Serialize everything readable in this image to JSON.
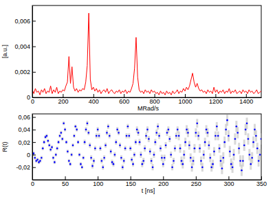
{
  "chart_data": [
    {
      "type": "line",
      "y_label": "[a.u.]",
      "x_label": "MRad/s",
      "x": [
        0,
        10,
        20,
        30,
        40,
        50,
        60,
        70,
        80,
        90,
        100,
        110,
        120,
        130,
        140,
        150,
        160,
        170,
        180,
        190,
        200,
        210,
        220,
        230,
        240,
        250,
        260,
        270,
        280,
        290,
        300,
        310,
        320,
        330,
        340,
        350,
        360,
        370,
        380,
        390,
        400,
        410,
        420,
        430,
        440,
        450,
        460,
        470,
        480,
        490,
        500,
        510,
        520,
        530,
        540,
        550,
        560,
        570,
        580,
        590,
        600,
        610,
        620,
        630,
        640,
        650,
        660,
        670,
        680,
        690,
        700,
        710,
        720,
        730,
        740,
        750,
        760,
        770,
        780,
        790,
        800,
        810,
        820,
        830,
        840,
        850,
        860,
        870,
        880,
        890,
        900,
        910,
        920,
        930,
        940,
        950,
        960,
        970,
        980,
        990,
        1000,
        1010,
        1020,
        1030,
        1040,
        1050,
        1060,
        1070,
        1080,
        1090,
        1100,
        1110,
        1120,
        1130,
        1140,
        1150,
        1160,
        1170,
        1180,
        1190,
        1200,
        1210,
        1220,
        1230,
        1240,
        1250,
        1260,
        1270,
        1280,
        1290,
        1300,
        1310,
        1320,
        1330,
        1340,
        1350,
        1360,
        1370,
        1380,
        1390,
        1400,
        1410,
        1420,
        1430,
        1440,
        1450,
        1460,
        1470,
        1480,
        1490,
        1500
      ],
      "series": [
        {
          "color": "#ff0000",
          "line_style": "solid",
          "values": [
            0.0006,
            0.0003,
            0.0007,
            0.0004,
            0.0005,
            0.0002,
            0.0006,
            0.0004,
            0.0007,
            0.0003,
            0.0005,
            0.0004,
            0.0009,
            0.0003,
            0.0006,
            0.0004,
            0.0008,
            0.0003,
            0.0005,
            0.0004,
            0.0006,
            0.0005,
            0.0009,
            0.0012,
            0.0032,
            0.0011,
            0.0024,
            0.0008,
            0.0005,
            0.0007,
            0.0004,
            0.0006,
            0.0005,
            0.0007,
            0.0006,
            0.0012,
            0.0025,
            0.0066,
            0.0014,
            0.0006,
            0.0008,
            0.0005,
            0.0007,
            0.0004,
            0.0006,
            0.0003,
            0.0005,
            0.0006,
            0.0004,
            0.0007,
            0.0003,
            0.0005,
            0.0006,
            0.0004,
            0.0003,
            0.0005,
            0.0004,
            0.0006,
            0.0003,
            0.0005,
            0.0004,
            0.0006,
            0.0003,
            0.0005,
            0.0004,
            0.0007,
            0.0011,
            0.0023,
            0.0047,
            0.0016,
            0.0006,
            0.0004,
            0.0005,
            0.0003,
            0.0006,
            0.0004,
            0.0005,
            0.0003,
            0.0006,
            0.0004,
            0.0005,
            0.0003,
            0.0004,
            0.0002,
            0.0005,
            0.0003,
            0.0004,
            0.0002,
            0.0005,
            0.0003,
            0.0004,
            0.0002,
            0.0005,
            0.0003,
            0.0004,
            0.0006,
            0.0003,
            0.0005,
            0.0004,
            0.0007,
            0.0005,
            0.0008,
            0.0006,
            0.0009,
            0.0014,
            0.0019,
            0.0012,
            0.0008,
            0.0011,
            0.0007,
            0.0005,
            0.0006,
            0.0004,
            0.0005,
            0.0003,
            0.0006,
            0.0004,
            0.0005,
            0.0003,
            0.0008,
            0.0004,
            0.0006,
            0.0003,
            0.0005,
            0.0004,
            0.0006,
            0.0003,
            0.0005,
            0.0004,
            0.0007,
            0.0003,
            0.0005,
            0.0004,
            0.0006,
            0.0003,
            0.0004,
            0.0005,
            0.0003,
            0.0006,
            0.0004,
            0.0005,
            0.0003,
            0.0006,
            0.0004,
            0.0005,
            0.0003,
            0.0004,
            0.0006,
            0.0003,
            0.0004,
            0.0005
          ]
        }
      ],
      "xlim": [
        0,
        1500
      ],
      "xticks": [
        0,
        200,
        400,
        600,
        800,
        1000,
        1200,
        1400
      ],
      "ylim": [
        0,
        0.0072
      ],
      "yticks": [
        0,
        {
          "value": 0.002,
          "label": "0,002"
        },
        {
          "value": 0.004,
          "label": "0,004"
        },
        {
          "value": 0.006,
          "label": "0,006"
        }
      ]
    },
    {
      "type": "scatter",
      "y_label": "R(t)",
      "x_label": "t [ns]",
      "x": [
        0,
        2,
        4,
        6,
        8,
        10,
        12,
        14,
        16,
        18,
        20,
        22,
        24,
        26,
        28,
        30,
        32,
        34,
        36,
        38,
        40,
        42,
        44,
        46,
        48,
        50,
        52,
        54,
        56,
        58,
        60,
        62,
        64,
        66,
        68,
        70,
        72,
        74,
        76,
        78,
        80,
        82,
        84,
        86,
        88,
        90,
        92,
        94,
        96,
        98,
        100,
        102,
        104,
        106,
        108,
        110,
        112,
        114,
        116,
        118,
        120,
        122,
        124,
        126,
        128,
        130,
        132,
        134,
        136,
        138,
        140,
        142,
        144,
        146,
        148,
        150,
        152,
        154,
        156,
        158,
        160,
        162,
        164,
        166,
        168,
        170,
        172,
        174,
        176,
        178,
        180,
        182,
        184,
        186,
        188,
        190,
        192,
        194,
        196,
        198,
        200,
        202,
        204,
        206,
        208,
        210,
        212,
        214,
        216,
        218,
        220,
        222,
        224,
        226,
        228,
        230,
        232,
        234,
        236,
        238,
        240,
        242,
        244,
        246,
        248,
        250,
        252,
        254,
        256,
        258,
        260,
        262,
        264,
        266,
        268,
        270,
        272,
        274,
        276,
        278,
        280,
        282,
        284,
        286,
        288,
        290,
        292,
        294,
        296,
        298,
        300,
        302,
        304,
        306,
        308,
        310,
        312,
        314,
        316,
        318,
        320,
        322,
        324,
        326,
        328,
        330,
        332,
        334,
        336,
        338,
        340,
        342,
        344,
        346,
        348,
        350
      ],
      "series": [
        {
          "color": "#0000ff",
          "marker": "circle",
          "values": [
            0.0,
            0.002,
            -0.005,
            -0.01,
            -0.008,
            -0.012,
            -0.01,
            -0.005,
            0.01,
            0.02,
            0.028,
            0.03,
            0.022,
            0.015,
            0.008,
            0.012,
            -0.005,
            -0.012,
            0.0,
            0.01,
            0.02,
            0.03,
            0.035,
            0.025,
            0.05,
            0.04,
            0.02,
            0.005,
            -0.01,
            -0.015,
            0.0,
            0.015,
            0.03,
            0.045,
            0.04,
            0.02,
            0.0,
            -0.015,
            -0.02,
            -0.005,
            0.02,
            0.04,
            0.05,
            0.035,
            0.015,
            -0.005,
            -0.018,
            -0.01,
            0.01,
            0.03,
            0.04,
            0.03,
            0.01,
            -0.01,
            -0.02,
            -0.005,
            0.015,
            0.035,
            0.045,
            0.03,
            0.005,
            -0.012,
            -0.015,
            0.0,
            0.02,
            0.04,
            0.035,
            0.015,
            -0.005,
            -0.02,
            -0.01,
            0.01,
            0.03,
            0.045,
            0.03,
            0.01,
            -0.008,
            -0.015,
            0.0,
            0.02,
            0.04,
            0.035,
            0.02,
            0.0,
            -0.015,
            -0.01,
            0.01,
            0.03,
            0.04,
            0.025,
            0.005,
            -0.01,
            -0.02,
            0.0,
            0.02,
            0.035,
            0.045,
            0.03,
            0.01,
            -0.005,
            -0.015,
            -0.005,
            0.015,
            0.035,
            0.04,
            0.025,
            0.0,
            -0.02,
            -0.01,
            0.01,
            0.03,
            0.04,
            0.03,
            0.01,
            -0.01,
            -0.015,
            0.0,
            0.02,
            0.04,
            0.035,
            0.015,
            -0.005,
            -0.02,
            -0.01,
            0.01,
            0.035,
            0.05,
            0.03,
            0.01,
            -0.01,
            -0.02,
            0.0,
            0.02,
            0.04,
            0.035,
            0.015,
            -0.005,
            -0.02,
            -0.015,
            0.005,
            0.03,
            0.045,
            0.03,
            0.01,
            -0.01,
            -0.022,
            -0.005,
            0.02,
            0.04,
            0.055,
            0.03,
            0.005,
            -0.015,
            -0.02,
            0.0,
            0.025,
            0.045,
            0.035,
            0.01,
            -0.01,
            -0.025,
            -0.01,
            0.015,
            0.04,
            0.05,
            0.025,
            0.0,
            -0.015,
            -0.005,
            0.02,
            0.04,
            0.03,
            0.01,
            -0.01,
            0.0,
            0.025
          ],
          "errors": [
            0.003,
            0.003,
            0.003,
            0.003,
            0.003,
            0.003,
            0.003,
            0.003,
            0.003,
            0.003,
            0.003,
            0.003,
            0.003,
            0.003,
            0.003,
            0.003,
            0.003,
            0.003,
            0.003,
            0.003,
            0.003,
            0.003,
            0.003,
            0.003,
            0.003,
            0.003,
            0.003,
            0.003,
            0.003,
            0.003,
            0.003,
            0.003,
            0.003,
            0.003,
            0.003,
            0.003,
            0.003,
            0.003,
            0.003,
            0.003,
            0.004,
            0.004,
            0.004,
            0.004,
            0.004,
            0.004,
            0.004,
            0.004,
            0.004,
            0.004,
            0.004,
            0.004,
            0.004,
            0.004,
            0.004,
            0.004,
            0.004,
            0.004,
            0.004,
            0.004,
            0.004,
            0.004,
            0.004,
            0.004,
            0.004,
            0.004,
            0.004,
            0.004,
            0.004,
            0.004,
            0.004,
            0.004,
            0.004,
            0.004,
            0.004,
            0.004,
            0.004,
            0.004,
            0.004,
            0.004,
            0.005,
            0.005,
            0.005,
            0.005,
            0.005,
            0.005,
            0.005,
            0.005,
            0.005,
            0.005,
            0.005,
            0.005,
            0.005,
            0.005,
            0.005,
            0.005,
            0.005,
            0.005,
            0.005,
            0.005,
            0.005,
            0.005,
            0.005,
            0.005,
            0.005,
            0.005,
            0.005,
            0.005,
            0.005,
            0.005,
            0.005,
            0.005,
            0.007,
            0.007,
            0.007,
            0.007,
            0.007,
            0.007,
            0.007,
            0.007,
            0.007,
            0.007,
            0.007,
            0.007,
            0.007,
            0.007,
            0.007,
            0.007,
            0.007,
            0.007,
            0.007,
            0.007,
            0.007,
            0.007,
            0.007,
            0.007,
            0.007,
            0.007,
            0.007,
            0.007,
            0.007,
            0.007,
            0.007,
            0.007,
            0.009,
            0.009,
            0.009,
            0.009,
            0.009,
            0.009,
            0.009,
            0.009,
            0.009,
            0.009,
            0.009,
            0.009,
            0.009,
            0.009,
            0.009,
            0.009,
            0.009,
            0.009,
            0.009,
            0.009,
            0.009,
            0.009,
            0.009,
            0.009,
            0.009,
            0.009,
            0.009,
            0.009,
            0.009,
            0.009,
            0.009,
            0.009
          ]
        }
      ],
      "xlim": [
        0,
        350
      ],
      "xticks": [
        0,
        50,
        100,
        150,
        200,
        250,
        300,
        350
      ],
      "ylim": [
        -0.04,
        0.065
      ],
      "yticks": [
        {
          "value": -0.02,
          "label": "-0,02"
        },
        0,
        {
          "value": 0.02,
          "label": "0,02"
        },
        {
          "value": 0.04,
          "label": "0,04"
        },
        {
          "value": 0.06,
          "label": "0,06"
        }
      ]
    }
  ]
}
